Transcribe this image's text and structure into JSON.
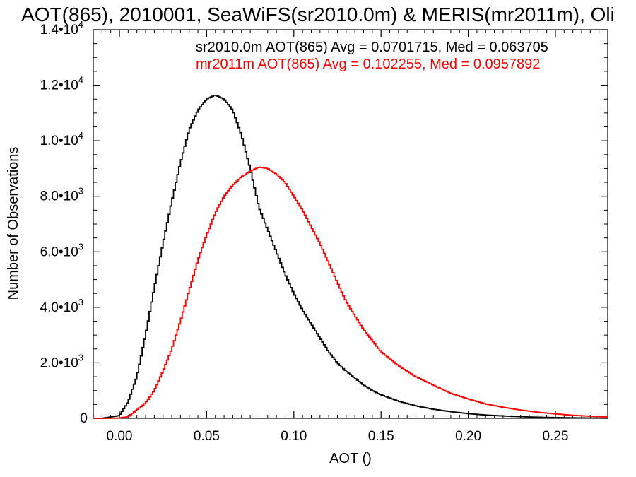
{
  "chart_data": {
    "type": "line",
    "style": "histogram-step",
    "title": "AOT(865), 2010001, SeaWiFS(sr2010.0m) & MERIS(mr2011m), Oli",
    "xlabel": "AOT ()",
    "ylabel": "Number of Observations",
    "xlim": [
      -0.015,
      0.28
    ],
    "ylim": [
      0,
      14000
    ],
    "xticks": [
      0.0,
      0.05,
      0.1,
      0.15,
      0.2,
      0.25
    ],
    "xtick_labels": [
      "0.00",
      "0.05",
      "0.10",
      "0.15",
      "0.20",
      "0.25"
    ],
    "yticks": [
      {
        "value": 0,
        "mantissa": "0",
        "exponent": ""
      },
      {
        "value": 2000,
        "mantissa": "2.0•10",
        "exponent": "3"
      },
      {
        "value": 4000,
        "mantissa": "4.0•10",
        "exponent": "3"
      },
      {
        "value": 6000,
        "mantissa": "6.0•10",
        "exponent": "3"
      },
      {
        "value": 8000,
        "mantissa": "8.0•10",
        "exponent": "3"
      },
      {
        "value": 10000,
        "mantissa": "1.0•10",
        "exponent": "4"
      },
      {
        "value": 12000,
        "mantissa": "1.2•10",
        "exponent": "4"
      },
      {
        "value": 14000,
        "mantissa": "1.4•10",
        "exponent": "4"
      }
    ],
    "grid": false,
    "legend_placement": "top-right",
    "legend": [
      {
        "text": "sr2010.0m AOT(865) Avg = 0.0701715, Med = 0.063705",
        "color": "#000000"
      },
      {
        "text": "mr2011m AOT(865) Avg = 0.102255, Med = 0.0957892",
        "color": "#ff0000"
      }
    ],
    "series": [
      {
        "name": "sr2010.0m",
        "color": "#000000",
        "x": [
          -0.01,
          0.0,
          0.005,
          0.01,
          0.015,
          0.02,
          0.025,
          0.03,
          0.035,
          0.04,
          0.045,
          0.05,
          0.055,
          0.06,
          0.065,
          0.07,
          0.075,
          0.08,
          0.085,
          0.09,
          0.095,
          0.1,
          0.105,
          0.11,
          0.115,
          0.12,
          0.125,
          0.13,
          0.135,
          0.14,
          0.145,
          0.15,
          0.16,
          0.17,
          0.18,
          0.19,
          0.2,
          0.21,
          0.22,
          0.23,
          0.24,
          0.25,
          0.26,
          0.27,
          0.28
        ],
        "y": [
          0,
          100,
          600,
          1500,
          3000,
          4700,
          6300,
          7800,
          9200,
          10400,
          11100,
          11500,
          11650,
          11500,
          11100,
          10200,
          9000,
          7600,
          6800,
          6000,
          5200,
          4500,
          3900,
          3400,
          2900,
          2400,
          2000,
          1700,
          1450,
          1200,
          1000,
          850,
          620,
          450,
          330,
          240,
          170,
          120,
          85,
          60,
          40,
          28,
          18,
          12,
          8
        ]
      },
      {
        "name": "mr2011m",
        "color": "#ff0000",
        "x": [
          -0.01,
          0.0,
          0.005,
          0.01,
          0.015,
          0.02,
          0.025,
          0.03,
          0.035,
          0.04,
          0.045,
          0.05,
          0.055,
          0.06,
          0.065,
          0.07,
          0.075,
          0.08,
          0.085,
          0.09,
          0.095,
          0.1,
          0.105,
          0.11,
          0.115,
          0.12,
          0.125,
          0.13,
          0.135,
          0.14,
          0.145,
          0.15,
          0.16,
          0.17,
          0.18,
          0.19,
          0.2,
          0.21,
          0.22,
          0.23,
          0.24,
          0.25,
          0.26,
          0.27,
          0.28
        ],
        "y": [
          0,
          10,
          60,
          300,
          550,
          1000,
          1700,
          2500,
          3500,
          4600,
          5700,
          6600,
          7400,
          8000,
          8400,
          8700,
          8900,
          9050,
          9000,
          8800,
          8500,
          8000,
          7500,
          6900,
          6300,
          5600,
          4900,
          4200,
          3700,
          3200,
          2800,
          2400,
          1900,
          1500,
          1200,
          900,
          700,
          520,
          400,
          300,
          220,
          160,
          110,
          75,
          50
        ]
      }
    ]
  }
}
